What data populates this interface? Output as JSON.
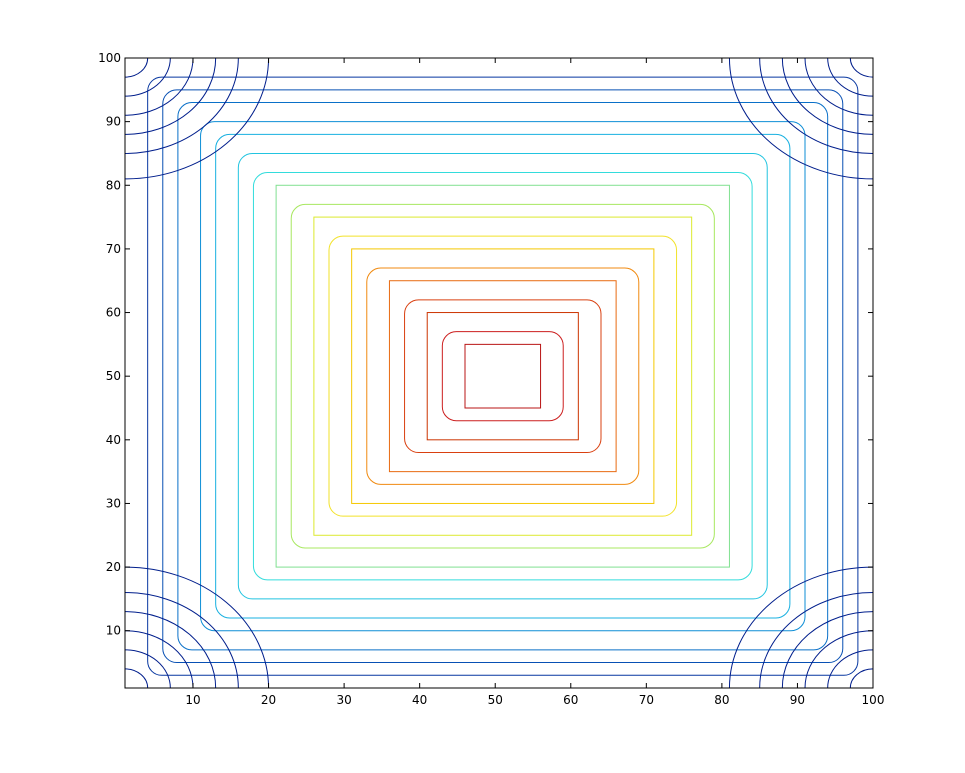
{
  "chart_data": {
    "type": "contour",
    "title": "",
    "xlabel": "",
    "ylabel": "",
    "xlim": [
      1,
      100
    ],
    "ylim": [
      1,
      100
    ],
    "grid": false,
    "xticks": [
      10,
      20,
      30,
      40,
      50,
      60,
      70,
      80,
      90,
      100
    ],
    "yticks": [
      10,
      20,
      30,
      40,
      50,
      60,
      70,
      80,
      90,
      100
    ],
    "xtick_labels": [
      "10",
      "20",
      "30",
      "40",
      "50",
      "60",
      "70",
      "80",
      "90",
      "100"
    ],
    "ytick_labels": [
      "10",
      "20",
      "30",
      "40",
      "50",
      "60",
      "70",
      "80",
      "90",
      "100"
    ],
    "colormap": "jet",
    "contours": [
      {
        "x": [
          46,
          56
        ],
        "y": [
          45,
          55
        ],
        "rounded": false,
        "color": "#b81414"
      },
      {
        "x": [
          43,
          59
        ],
        "y": [
          43,
          57
        ],
        "rounded": true,
        "color": "#cc1f1f"
      },
      {
        "x": [
          41,
          61
        ],
        "y": [
          40,
          60
        ],
        "rounded": false,
        "color": "#cc3300"
      },
      {
        "x": [
          38,
          64
        ],
        "y": [
          38,
          62
        ],
        "rounded": true,
        "color": "#d94010"
      },
      {
        "x": [
          36,
          66
        ],
        "y": [
          35,
          65
        ],
        "rounded": false,
        "color": "#e86a10"
      },
      {
        "x": [
          33,
          69
        ],
        "y": [
          33,
          67
        ],
        "rounded": true,
        "color": "#f08a10"
      },
      {
        "x": [
          31,
          71
        ],
        "y": [
          30,
          70
        ],
        "rounded": false,
        "color": "#f5c800"
      },
      {
        "x": [
          28,
          74
        ],
        "y": [
          28,
          72
        ],
        "rounded": true,
        "color": "#f2e22a"
      },
      {
        "x": [
          26,
          76
        ],
        "y": [
          25,
          75
        ],
        "rounded": false,
        "color": "#dcea2e"
      },
      {
        "x": [
          23,
          79
        ],
        "y": [
          23,
          77
        ],
        "rounded": true,
        "color": "#a8e860"
      },
      {
        "x": [
          21,
          81
        ],
        "y": [
          20,
          80
        ],
        "rounded": false,
        "color": "#80e090"
      },
      {
        "x": [
          18,
          84
        ],
        "y": [
          18,
          82
        ],
        "rounded": true,
        "color": "#33dcdc"
      },
      {
        "x": [
          16,
          86
        ],
        "y": [
          15,
          85
        ],
        "rounded": true,
        "color": "#22c4e0"
      },
      {
        "x": [
          13,
          89
        ],
        "y": [
          12,
          88
        ],
        "rounded": true,
        "color": "#18b0e0"
      },
      {
        "x": [
          11,
          91
        ],
        "y": [
          10,
          90
        ],
        "rounded": true,
        "color": "#0e8ed6"
      },
      {
        "x": [
          8,
          94
        ],
        "y": [
          7,
          93
        ],
        "rounded": true,
        "color": "#0a70c8"
      },
      {
        "x": [
          6,
          96
        ],
        "y": [
          5,
          95
        ],
        "rounded": true,
        "color": "#0850b4"
      },
      {
        "x": [
          4,
          98
        ],
        "y": [
          3,
          97
        ],
        "rounded": true,
        "color": "#0636a0"
      }
    ],
    "corner_arcs": [
      {
        "corner": [
          1,
          1
        ],
        "radii": [
          3,
          6,
          9,
          12,
          15,
          19
        ],
        "color": "#001e8c"
      },
      {
        "corner": [
          100,
          1
        ],
        "radii": [
          3,
          6,
          9,
          12,
          15,
          19
        ],
        "color": "#001e8c"
      },
      {
        "corner": [
          1,
          100
        ],
        "radii": [
          3,
          6,
          9,
          12,
          15,
          19
        ],
        "color": "#001e8c"
      },
      {
        "corner": [
          100,
          100
        ],
        "radii": [
          3,
          6,
          9,
          12,
          15,
          19
        ],
        "color": "#001e8c"
      }
    ]
  }
}
